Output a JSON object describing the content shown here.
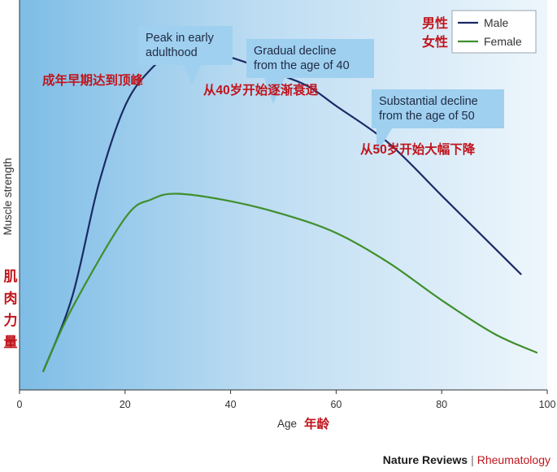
{
  "chart_data": {
    "type": "line",
    "xlabel": "Age",
    "xlabel_cn": "年龄",
    "ylabel": "Muscle strength",
    "ylabel_cn": "肌肉力量",
    "xlim": [
      0,
      100
    ],
    "xticks": [
      "0",
      "20",
      "40",
      "60",
      "80",
      "100"
    ],
    "ylim": [
      0,
      100
    ],
    "grid": false,
    "legend_position": "top-right",
    "series": [
      {
        "name": "Male",
        "name_cn": "男性",
        "color": "#1b2a66",
        "x": [
          4.5,
          10,
          15,
          20,
          25,
          30,
          33,
          40,
          50,
          55,
          60,
          70,
          80,
          90,
          95
        ],
        "y": [
          5,
          25,
          55,
          76,
          86,
          91,
          91.5,
          89,
          84,
          81,
          76,
          66,
          52,
          38,
          31
        ]
      },
      {
        "name": "Female",
        "name_cn": "女性",
        "color": "#3f8f2c",
        "x": [
          4.5,
          10,
          20,
          25,
          30,
          40,
          50,
          60,
          70,
          80,
          90,
          98
        ],
        "y": [
          5,
          22,
          46,
          51,
          52.5,
          50.5,
          47,
          42,
          34,
          24,
          15,
          10
        ]
      }
    ],
    "annotations": [
      {
        "id": "peak",
        "text_lines": [
          "Peak in early",
          "adulthood"
        ],
        "text_cn": "成年早期达到顶峰",
        "x": 33
      },
      {
        "id": "gradual",
        "text_lines": [
          "Gradual decline",
          "from the age of 40"
        ],
        "text_cn": "从40岁开始逐渐衰退",
        "x": 42
      },
      {
        "id": "substantial",
        "text_lines": [
          "Substantial decline",
          "from the age of 50"
        ],
        "text_cn": "从50岁开始大幅下降",
        "x": 73
      }
    ]
  },
  "footer": {
    "publisher": "Nature Reviews",
    "separator": "|",
    "journal": "Rheumatology"
  }
}
